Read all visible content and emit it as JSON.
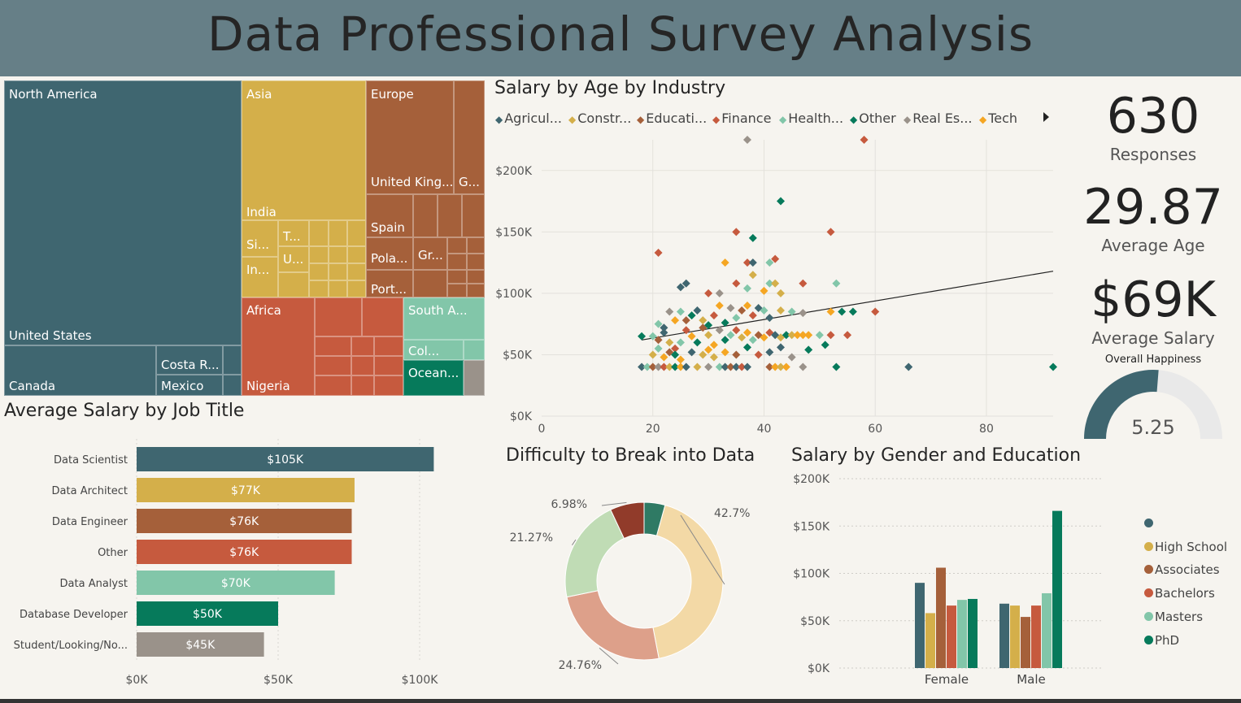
{
  "title": "Data Professional Survey Analysis",
  "colors": {
    "header_bg": "#667f87",
    "teal": "#3f6670",
    "gold": "#d4af4a",
    "brown": "#a5603a",
    "red": "#c65a3e",
    "mint": "#82c6a9",
    "green": "#067a5b",
    "gray": "#9a928a"
  },
  "treemap": {
    "labels": {
      "north_america": "North America",
      "united_states": "United States",
      "canada": "Canada",
      "costa_rica": "Costa R...",
      "mexico": "Mexico",
      "asia": "Asia",
      "india": "India",
      "si": "Si...",
      "in": "In...",
      "t": "T...",
      "u": "U...",
      "europe": "Europe",
      "united_kingdom": "United King...",
      "g": "G...",
      "spain": "Spain",
      "poland": "Pola...",
      "greece": "Gr...",
      "portugal": "Port...",
      "africa": "Africa",
      "nigeria": "Nigeria",
      "south_america": "South A...",
      "colombia": "Col...",
      "oceania": "Ocean..."
    }
  },
  "scatter_title": "Salary by Age by Industry",
  "kpis": {
    "responses_value": "630",
    "responses_label": "Responses",
    "age_value": "29.87",
    "age_label": "Average Age",
    "salary_value": "$69K",
    "salary_label": "Average Salary"
  },
  "gauge_title": "Overall Happiness",
  "bar_title": "Average Salary by Job Title",
  "donut_title": "Difficulty to Break into Data",
  "gender_title": "Salary by Gender and Education",
  "chart_data": [
    {
      "type": "scatter",
      "title": "Salary by Age by Industry",
      "legend": [
        "Agricul...",
        "Constr...",
        "Educati...",
        "Finance",
        "Health...",
        "Other",
        "Real Es...",
        "Tech"
      ],
      "legend_position": "top",
      "series_colors": [
        "#3f6670",
        "#d4af4a",
        "#a5603a",
        "#c65a3e",
        "#82c6a9",
        "#067a5b",
        "#9a928a",
        "#f5a623"
      ],
      "x_ticks": [
        "0",
        "20",
        "40",
        "60",
        "80"
      ],
      "y_ticks": [
        "$0K",
        "$50K",
        "$100K",
        "$150K",
        "$200K"
      ],
      "xlim": [
        0,
        92
      ],
      "ylim": [
        0,
        225000
      ],
      "grid": true,
      "trendline": [
        [
          18,
          62000
        ],
        [
          92,
          118000
        ]
      ],
      "points": [
        [
          18,
          40000,
          0
        ],
        [
          19,
          40000,
          4
        ],
        [
          20,
          40000,
          2
        ],
        [
          21,
          40000,
          6
        ],
        [
          22,
          40000,
          3
        ],
        [
          23,
          40000,
          1
        ],
        [
          24,
          40000,
          5
        ],
        [
          25,
          40000,
          7
        ],
        [
          26,
          40000,
          0
        ],
        [
          28,
          40000,
          1
        ],
        [
          30,
          40000,
          6
        ],
        [
          32,
          40000,
          4
        ],
        [
          33,
          40000,
          0
        ],
        [
          34,
          40000,
          2
        ],
        [
          35,
          40000,
          0
        ],
        [
          36,
          40000,
          3
        ],
        [
          37,
          40000,
          0
        ],
        [
          41,
          40000,
          2
        ],
        [
          42,
          40000,
          7
        ],
        [
          43,
          40000,
          1
        ],
        [
          44,
          40000,
          7
        ],
        [
          47,
          40000,
          6
        ],
        [
          53,
          40000,
          5
        ],
        [
          66,
          40000,
          0
        ],
        [
          92,
          40000,
          5
        ],
        [
          18,
          65000,
          5
        ],
        [
          20,
          65000,
          4
        ],
        [
          21,
          62000,
          2
        ],
        [
          22,
          68000,
          0
        ],
        [
          23,
          60000,
          1
        ],
        [
          24,
          55000,
          3
        ],
        [
          25,
          60000,
          4
        ],
        [
          26,
          70000,
          3
        ],
        [
          27,
          65000,
          7
        ],
        [
          28,
          60000,
          5
        ],
        [
          29,
          72000,
          2
        ],
        [
          30,
          66000,
          1
        ],
        [
          31,
          58000,
          7
        ],
        [
          32,
          70000,
          6
        ],
        [
          33,
          62000,
          5
        ],
        [
          34,
          66000,
          4
        ],
        [
          35,
          70000,
          3
        ],
        [
          36,
          64000,
          1
        ],
        [
          37,
          68000,
          7
        ],
        [
          38,
          62000,
          4
        ],
        [
          39,
          66000,
          2
        ],
        [
          40,
          64000,
          7
        ],
        [
          41,
          68000,
          3
        ],
        [
          42,
          66000,
          0
        ],
        [
          43,
          64000,
          1
        ],
        [
          44,
          66000,
          5
        ],
        [
          45,
          66000,
          1
        ],
        [
          46,
          66000,
          7
        ],
        [
          47,
          66000,
          7
        ],
        [
          48,
          66000,
          7
        ],
        [
          50,
          66000,
          4
        ],
        [
          52,
          66000,
          3
        ],
        [
          55,
          66000,
          3
        ],
        [
          20,
          50000,
          1
        ],
        [
          21,
          55000,
          4
        ],
        [
          22,
          48000,
          7
        ],
        [
          23,
          52000,
          2
        ],
        [
          24,
          50000,
          5
        ],
        [
          25,
          46000,
          7
        ],
        [
          27,
          52000,
          0
        ],
        [
          29,
          50000,
          1
        ],
        [
          30,
          54000,
          7
        ],
        [
          31,
          48000,
          1
        ],
        [
          33,
          52000,
          7
        ],
        [
          35,
          50000,
          2
        ],
        [
          37,
          56000,
          5
        ],
        [
          39,
          50000,
          3
        ],
        [
          41,
          52000,
          0
        ],
        [
          43,
          56000,
          0
        ],
        [
          45,
          48000,
          6
        ],
        [
          48,
          54000,
          5
        ],
        [
          51,
          58000,
          5
        ],
        [
          21,
          75000,
          4
        ],
        [
          22,
          72000,
          0
        ],
        [
          23,
          85000,
          6
        ],
        [
          24,
          78000,
          7
        ],
        [
          25,
          85000,
          4
        ],
        [
          26,
          78000,
          2
        ],
        [
          27,
          82000,
          5
        ],
        [
          28,
          86000,
          0
        ],
        [
          29,
          78000,
          1
        ],
        [
          30,
          74000,
          5
        ],
        [
          31,
          82000,
          3
        ],
        [
          32,
          90000,
          7
        ],
        [
          33,
          76000,
          5
        ],
        [
          34,
          88000,
          6
        ],
        [
          35,
          80000,
          4
        ],
        [
          36,
          86000,
          2
        ],
        [
          37,
          90000,
          7
        ],
        [
          38,
          82000,
          3
        ],
        [
          39,
          88000,
          0
        ],
        [
          40,
          86000,
          4
        ],
        [
          41,
          80000,
          0
        ],
        [
          43,
          86000,
          1
        ],
        [
          45,
          85000,
          4
        ],
        [
          47,
          84000,
          6
        ],
        [
          52,
          85000,
          7
        ],
        [
          54,
          85000,
          5
        ],
        [
          56,
          85000,
          5
        ],
        [
          60,
          85000,
          3
        ],
        [
          25,
          105000,
          0
        ],
        [
          26,
          108000,
          0
        ],
        [
          30,
          100000,
          3
        ],
        [
          32,
          100000,
          6
        ],
        [
          35,
          108000,
          3
        ],
        [
          37,
          104000,
          4
        ],
        [
          38,
          115000,
          1
        ],
        [
          40,
          102000,
          7
        ],
        [
          41,
          108000,
          4
        ],
        [
          42,
          108000,
          1
        ],
        [
          43,
          100000,
          1
        ],
        [
          47,
          108000,
          3
        ],
        [
          53,
          108000,
          4
        ],
        [
          21,
          133000,
          3
        ],
        [
          33,
          125000,
          7
        ],
        [
          37,
          125000,
          3
        ],
        [
          38,
          125000,
          0
        ],
        [
          41,
          125000,
          4
        ],
        [
          42,
          128000,
          3
        ],
        [
          35,
          150000,
          3
        ],
        [
          38,
          145000,
          5
        ],
        [
          52,
          150000,
          3
        ],
        [
          43,
          175000,
          5
        ],
        [
          37,
          225000,
          6
        ],
        [
          58,
          225000,
          3
        ]
      ]
    },
    {
      "type": "bar",
      "orientation": "horizontal",
      "title": "Average Salary by Job Title",
      "categories": [
        "Data Scientist",
        "Data Architect",
        "Data Engineer",
        "Other",
        "Data Analyst",
        "Database Developer",
        "Student/Looking/No..."
      ],
      "values": [
        105,
        77,
        76,
        76,
        70,
        50,
        45
      ],
      "value_labels": [
        "$105K",
        "$77K",
        "$76K",
        "$76K",
        "$70K",
        "$50K",
        "$45K"
      ],
      "colors": [
        "#3f6670",
        "#d4af4a",
        "#a5603a",
        "#c65a3e",
        "#82c6a9",
        "#067a5b",
        "#9a928a"
      ],
      "x_ticks": [
        "$0K",
        "$50K",
        "$100K"
      ],
      "xlim": [
        0,
        110
      ]
    },
    {
      "type": "pie",
      "donut": true,
      "title": "Difficulty to Break into Data",
      "values": [
        42.7,
        24.76,
        21.27,
        6.98,
        4.29
      ],
      "labels": [
        "42.7%",
        "24.76%",
        "21.27%",
        "6.98%",
        ""
      ],
      "colors": [
        "#f3d9a6",
        "#dda08a",
        "#c0dcb5",
        "#913b2a",
        "#2f7a64"
      ]
    },
    {
      "type": "bar",
      "title": "Salary by Gender and Education",
      "categories": [
        "Female",
        "Male"
      ],
      "series": [
        {
          "name": "",
          "values": [
            90000,
            68000
          ]
        },
        {
          "name": "High School",
          "values": [
            58000,
            66000
          ]
        },
        {
          "name": "Associates",
          "values": [
            106000,
            54000
          ]
        },
        {
          "name": "Bachelors",
          "values": [
            66000,
            66000
          ]
        },
        {
          "name": "Masters",
          "values": [
            72000,
            79000
          ]
        },
        {
          "name": "PhD",
          "values": [
            73000,
            166000
          ]
        }
      ],
      "colors": [
        "#3f6670",
        "#d4af4a",
        "#a5603a",
        "#c65a3e",
        "#82c6a9",
        "#067a5b"
      ],
      "y_ticks": [
        "$0K",
        "$50K",
        "$100K",
        "$150K",
        "$200K"
      ],
      "ylim": [
        0,
        200000
      ],
      "legend_position": "right"
    },
    {
      "type": "gauge",
      "title": "Overall Happiness",
      "value": 5.25,
      "value_label": "5.25",
      "max": 10
    }
  ]
}
